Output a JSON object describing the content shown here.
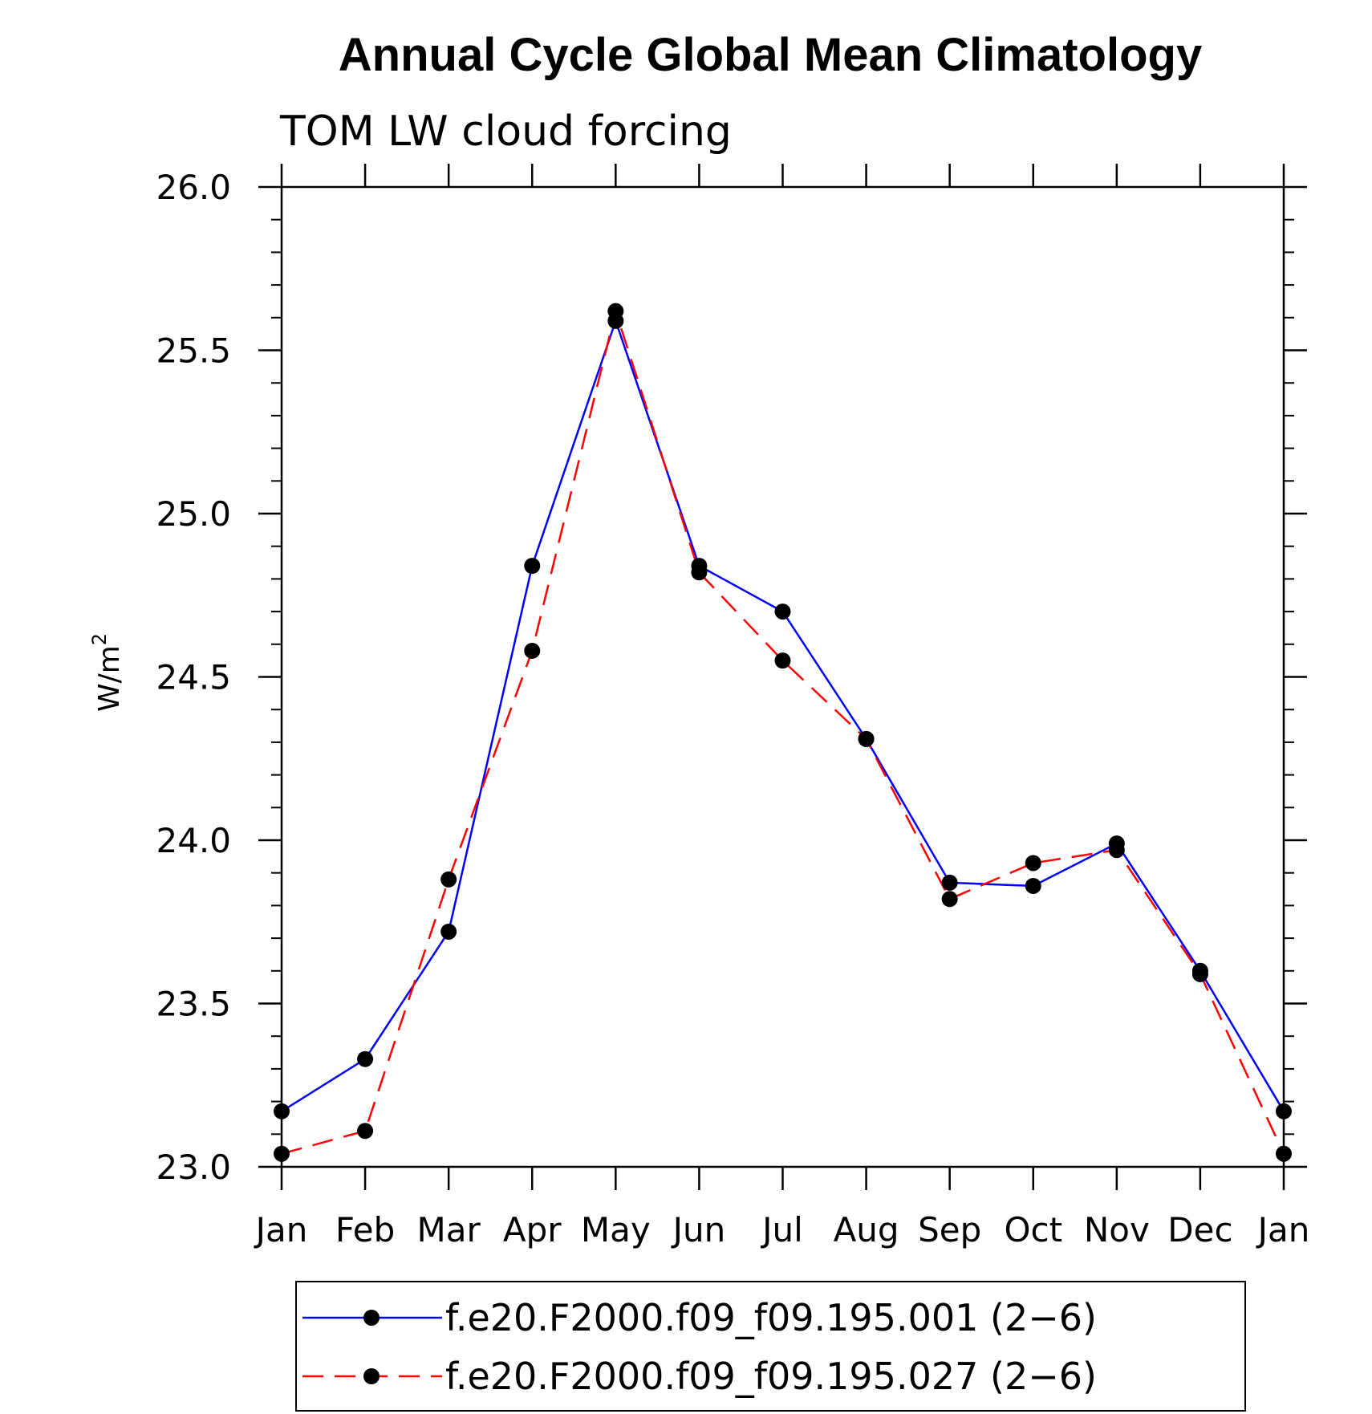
{
  "chart_data": {
    "type": "line",
    "title": "Annual Cycle Global Mean Climatology",
    "subtitle": "TOM LW cloud forcing",
    "ylabel": "W/m",
    "ylabel_superscript": "2",
    "xlabel": "",
    "categories": [
      "Jan",
      "Feb",
      "Mar",
      "Apr",
      "May",
      "Jun",
      "Jul",
      "Aug",
      "Sep",
      "Oct",
      "Nov",
      "Dec",
      "Jan"
    ],
    "ylim": [
      23.0,
      26.0
    ],
    "yticks": [
      23.0,
      23.5,
      24.0,
      24.5,
      25.0,
      25.5,
      26.0
    ],
    "ytick_labels": [
      "23.0",
      "23.5",
      "24.0",
      "24.5",
      "25.0",
      "25.5",
      "26.0"
    ],
    "y_minor_step": 0.1,
    "grid": false,
    "legend_position": "bottom",
    "series": [
      {
        "name": "f.e20.F2000.f09_f09.195.001 (2−6)",
        "color": "#0000ff",
        "line_style": "solid",
        "marker": "filled-circle",
        "values": [
          23.17,
          23.33,
          23.72,
          24.84,
          25.59,
          24.84,
          24.7,
          24.31,
          23.87,
          23.86,
          23.99,
          23.6,
          23.17
        ]
      },
      {
        "name": "f.e20.F2000.f09_f09.195.027 (2−6)",
        "color": "#ff0000",
        "line_style": "dashed",
        "marker": "filled-circle",
        "values": [
          23.04,
          23.11,
          23.88,
          24.58,
          25.62,
          24.82,
          24.55,
          24.31,
          23.82,
          23.93,
          23.97,
          23.59,
          23.04
        ]
      }
    ]
  }
}
